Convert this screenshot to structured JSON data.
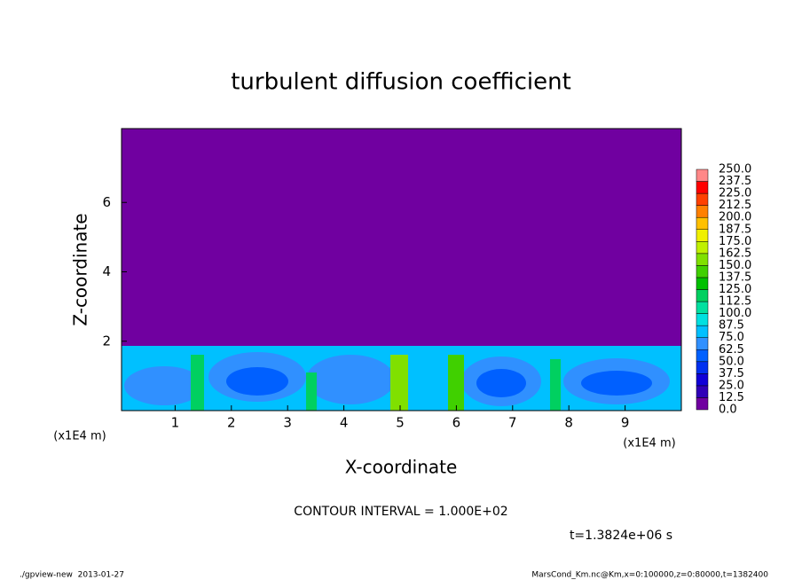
{
  "chart_data": {
    "type": "contour",
    "title": "turbulent diffusion coefficient",
    "x_label": "X-coordinate",
    "y_label": "Z-coordinate",
    "x_unit": "(x1E4 m)",
    "y_unit": "(x1E4 m)",
    "xlim": [
      0,
      10
    ],
    "xticks": [
      1,
      2,
      3,
      4,
      5,
      6,
      7,
      8,
      9
    ],
    "ylim": [
      0,
      8
    ],
    "yticks": [
      2,
      4,
      6
    ],
    "contour_interval": "CONTOUR INTERVAL = 1.000E+02",
    "time_label": "t=1.3824e+06 s",
    "footer_left": "./gpview-new  2013-01-27",
    "footer_right": "MarsCond_Km.nc@Km,x=0:100000,z=0:80000,t=1382400",
    "colorbar": {
      "levels": [
        {
          "value": 0,
          "label": "0.0"
        },
        12.5,
        {
          "value": 25,
          "label": "25.0"
        },
        37.5,
        {
          "value": 50,
          "label": "50.0"
        },
        62.5,
        {
          "value": 75,
          "label": "75.0"
        },
        87.5,
        {
          "value": 100,
          "label": "100.0"
        },
        112.5,
        {
          "value": 125,
          "label": "125.0"
        },
        137.5,
        {
          "value": 150,
          "label": "150.0"
        },
        162.5,
        {
          "value": 175,
          "label": "175.0"
        },
        187.5,
        {
          "value": 200,
          "label": "200.0"
        },
        212.5,
        {
          "value": 225,
          "label": "225.0"
        },
        237.5,
        {
          "value": 250,
          "label": "250.0"
        }
      ],
      "colors": [
        "#7000a0",
        "#3000b8",
        "#1000d8",
        "#0030f0",
        "#0060ff",
        "#3090ff",
        "#00c0ff",
        "#00e0e0",
        "#00e0a0",
        "#00d060",
        "#00c000",
        "#40d000",
        "#80e000",
        "#c0f000",
        "#f0f000",
        "#ffc000",
        "#ff8000",
        "#ff4000",
        "#ff0000",
        "#ff8888"
      ]
    }
  }
}
